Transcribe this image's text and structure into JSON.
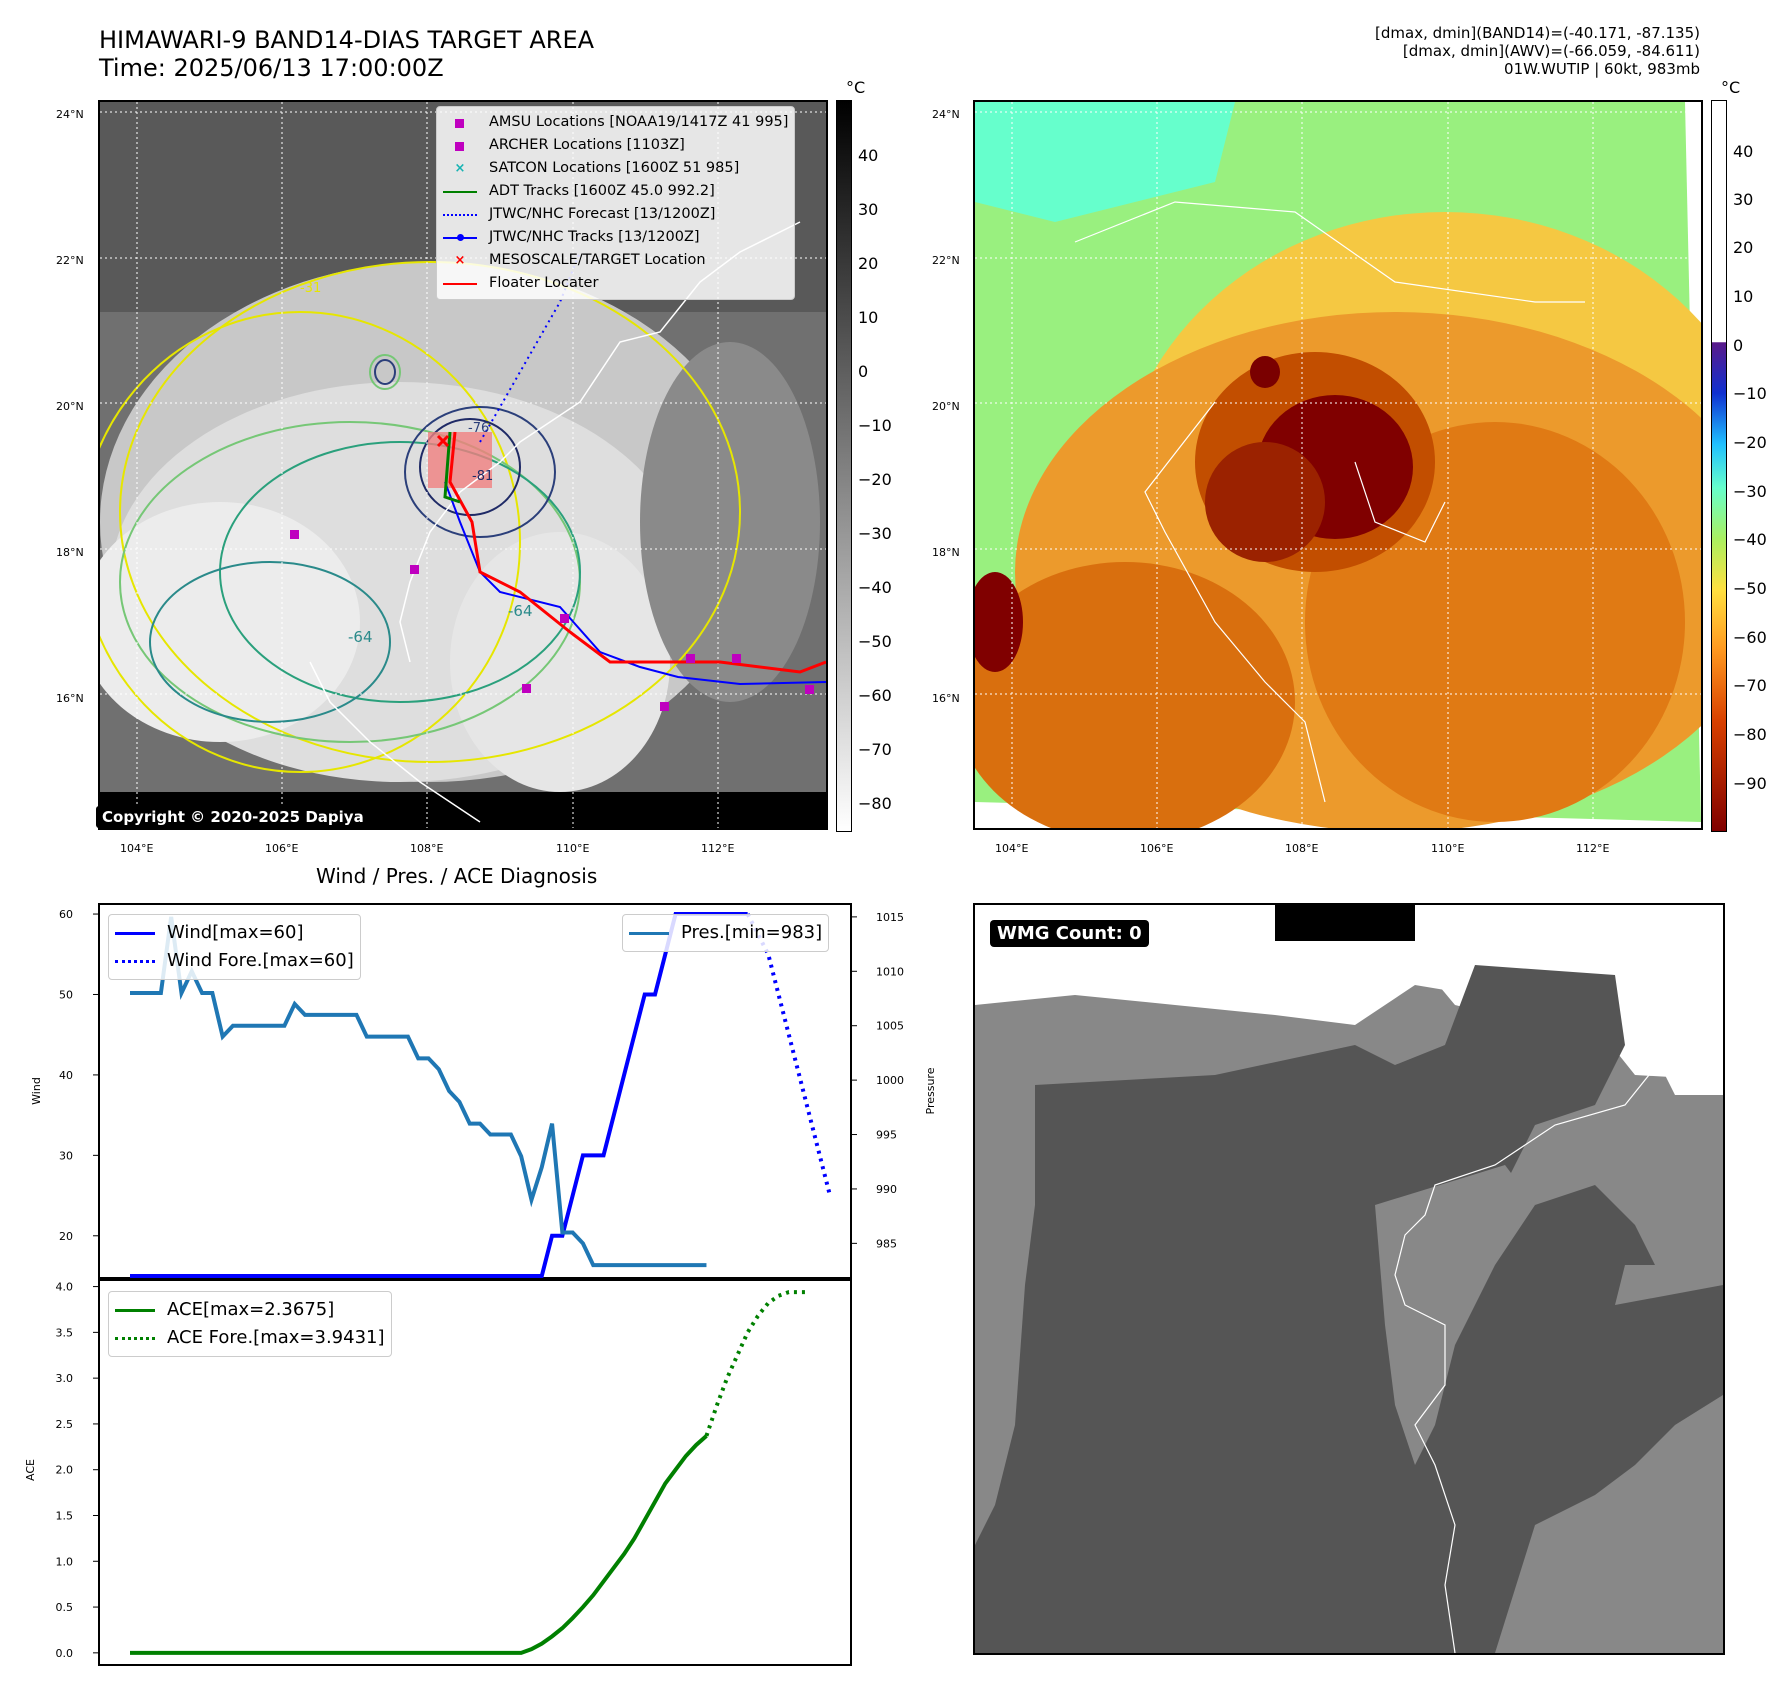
{
  "header": {
    "title_line1": "HIMAWARI-9 BAND14-DIAS TARGET AREA",
    "title_line2": "Time: 2025/06/13 17:00:00Z",
    "info_line1": "[dmax, dmin](BAND14)=(-40.171, -87.135)",
    "info_line2": "[dmax, dmin](AWV)=(-66.059, -84.611)",
    "info_line3": "01W.WUTIP | 60kt, 983mb"
  },
  "map": {
    "lat_labels": [
      "24°N",
      "22°N",
      "20°N",
      "18°N",
      "16°N"
    ],
    "lon_labels": [
      "104°E",
      "106°E",
      "108°E",
      "110°E",
      "112°E"
    ],
    "copyright": "Copyright © 2020-2025 Dapiya",
    "contour_labels": [
      "-64",
      "-64",
      "-81",
      "-31",
      "-76"
    ],
    "legend": [
      {
        "label": "AMSU Locations [NOAA19/1417Z 41 995]",
        "marker": "square",
        "color": "#bf00bf"
      },
      {
        "label": "ARCHER Locations [1103Z]",
        "marker": "square",
        "color": "#bf00bf"
      },
      {
        "label": "SATCON Locations [1600Z 51 985]",
        "marker": "x",
        "color": "#17b3b3"
      },
      {
        "label": "ADT Tracks [1600Z 45.0 992.2]",
        "marker": "line",
        "color": "#008000"
      },
      {
        "label": "JTWC/NHC Forecast [13/1200Z]",
        "marker": "dotted",
        "color": "#0000ff"
      },
      {
        "label": "JTWC/NHC Tracks [13/1200Z]",
        "marker": "linedot",
        "color": "#0000ff"
      },
      {
        "label": "MESOSCALE/TARGET Location",
        "marker": "x",
        "color": "#ff0000"
      },
      {
        "label": "Floater Locater",
        "marker": "line",
        "color": "#ff0000"
      }
    ]
  },
  "colorbar_gray": {
    "unit": "°C",
    "ticks": [
      "40",
      "30",
      "20",
      "10",
      "0",
      "−10",
      "−20",
      "−30",
      "−40",
      "−50",
      "−60",
      "−70",
      "−80"
    ]
  },
  "colorbar_color": {
    "unit": "°C",
    "ticks": [
      "40",
      "30",
      "20",
      "10",
      "0",
      "−10",
      "−20",
      "−30",
      "−40",
      "−50",
      "−60",
      "−70",
      "−80",
      "−90"
    ]
  },
  "wmg": {
    "label": "WMG Count: 0"
  },
  "chart_data": [
    {
      "type": "line",
      "title": "Wind / Pres. / ACE Diagnosis",
      "ylabel": "Wind",
      "y2label": "Pressure",
      "ylim": [
        15,
        61
      ],
      "y2lim": [
        982,
        1016
      ],
      "yticks": [
        "60",
        "50",
        "40",
        "30",
        "20"
      ],
      "y2ticks": [
        "1015",
        "1010",
        "1005",
        "1000",
        "995",
        "990",
        "985"
      ],
      "legend_left": [
        "Wind[max=60]",
        "Wind Fore.[max=60]"
      ],
      "legend_right": [
        "Pres.[min=983]"
      ],
      "series": [
        {
          "name": "Wind[max=60]",
          "style": "solid",
          "color": "#0000ff",
          "axis": "left",
          "x": [
            0,
            40,
            41,
            42,
            43,
            44,
            45,
            46,
            47,
            48,
            49,
            50,
            51,
            52,
            53,
            54,
            55,
            56,
            57,
            58,
            59,
            60
          ],
          "y": [
            15,
            15,
            20,
            20,
            25,
            30,
            30,
            30,
            35,
            40,
            45,
            50,
            50,
            55,
            60,
            60,
            60,
            60,
            60,
            60,
            60,
            60
          ]
        },
        {
          "name": "Wind Fore.[max=60]",
          "style": "dotted",
          "color": "#0000ff",
          "axis": "left",
          "x": [
            60,
            62,
            64,
            66,
            68
          ],
          "y": [
            60,
            55,
            45,
            35,
            25
          ]
        },
        {
          "name": "Pres.[min=983]",
          "style": "solid",
          "color": "#1f77b4",
          "axis": "right",
          "x": [
            0,
            1,
            2,
            3,
            4,
            5,
            6,
            7,
            8,
            9,
            10,
            11,
            12,
            13,
            14,
            15,
            16,
            17,
            18,
            19,
            20,
            21,
            22,
            23,
            24,
            25,
            26,
            27,
            28,
            29,
            30,
            31,
            32,
            33,
            34,
            35,
            36,
            37,
            38,
            39,
            40,
            41,
            42,
            43,
            44,
            45,
            46,
            47,
            48,
            49,
            50,
            51,
            52,
            53,
            54,
            55,
            56
          ],
          "y": [
            1008,
            1008,
            1008,
            1008,
            1015,
            1008,
            1010,
            1008,
            1008,
            1004,
            1005,
            1005,
            1005,
            1005,
            1005,
            1005,
            1007,
            1006,
            1006,
            1006,
            1006,
            1006,
            1006,
            1004,
            1004,
            1004,
            1004,
            1004,
            1002,
            1002,
            1001,
            999,
            998,
            996,
            996,
            995,
            995,
            995,
            993,
            989,
            992,
            996,
            986,
            986,
            985,
            983,
            983,
            983,
            983,
            983,
            983,
            983,
            983,
            983,
            983,
            983,
            983
          ]
        }
      ]
    },
    {
      "type": "line",
      "ylabel": "ACE",
      "ylim": [
        -0.1,
        4.05
      ],
      "yticks": [
        "4.0",
        "3.5",
        "3.0",
        "2.5",
        "2.0",
        "1.5",
        "1.0",
        "0.5",
        "0.0"
      ],
      "legend": [
        "ACE[max=2.3675]",
        "ACE Fore.[max=3.9431]"
      ],
      "series": [
        {
          "name": "ACE[max=2.3675]",
          "style": "solid",
          "color": "#008000",
          "x": [
            0,
            38,
            39,
            40,
            41,
            42,
            43,
            44,
            45,
            46,
            47,
            48,
            49,
            50,
            51,
            52,
            53,
            54,
            55,
            56
          ],
          "y": [
            0,
            0,
            0.04,
            0.1,
            0.18,
            0.27,
            0.38,
            0.5,
            0.63,
            0.78,
            0.93,
            1.08,
            1.25,
            1.45,
            1.65,
            1.85,
            2.0,
            2.15,
            2.27,
            2.37
          ]
        },
        {
          "name": "ACE Fore.[max=3.9431]",
          "style": "dotted",
          "color": "#008000",
          "x": [
            56,
            57,
            58,
            59,
            60,
            61,
            62,
            63,
            64,
            65,
            66
          ],
          "y": [
            2.37,
            2.7,
            3.0,
            3.25,
            3.5,
            3.68,
            3.82,
            3.9,
            3.94,
            3.94,
            3.94
          ]
        }
      ]
    }
  ]
}
